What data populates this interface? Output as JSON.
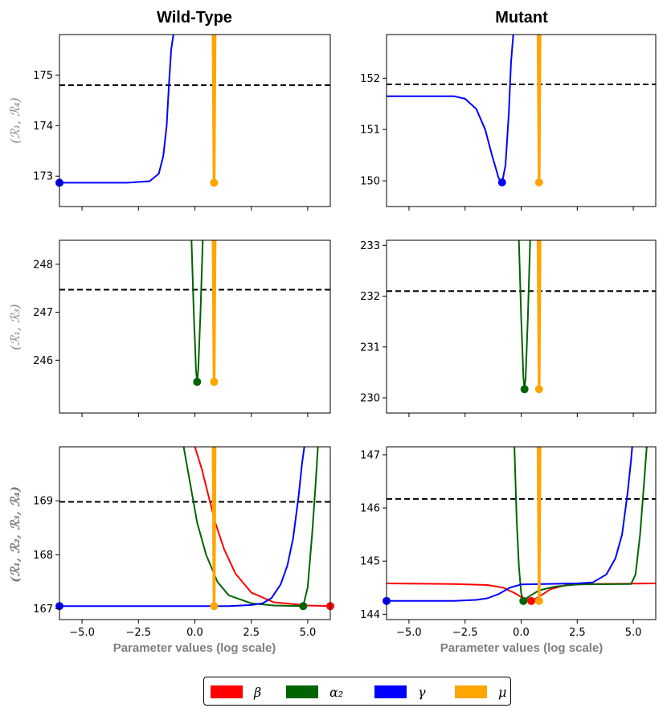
{
  "figure": {
    "column_titles": [
      "Wild-Type",
      "Mutant"
    ],
    "xlabel": "Parameter values (log scale)",
    "row_labels": [
      "(ℛ₁, ℛ₄)",
      "(ℛ₁, ℛ₃)",
      "(ℛ₁, ℛ₂, ℛ₃, ℛ₄)"
    ]
  },
  "legend": [
    {
      "name": "β",
      "color": "#ff0000"
    },
    {
      "name": "α₂",
      "color": "#006400"
    },
    {
      "name": "γ",
      "color": "#0000ff"
    },
    {
      "name": "μ",
      "color": "#ffa500"
    }
  ],
  "colors": {
    "beta": "#ff0000",
    "alpha2": "#006400",
    "gamma": "#0000ff",
    "mu": "#ffa500",
    "threshold": "#000000"
  },
  "chart_data": [
    {
      "type": "line",
      "panel": "Wild-Type row 1",
      "ylabel": "(ℛ₁, ℛ₄)",
      "xlim": [
        -6.0,
        6.0
      ],
      "ylim": [
        172.4,
        175.8
      ],
      "xticks": [
        -5.0,
        -2.5,
        0.0,
        2.5,
        5.0
      ],
      "show_xticklabels": false,
      "yticks": [
        173,
        174,
        175
      ],
      "threshold": 174.8,
      "series": [
        {
          "name": "γ",
          "color": "#0000ff",
          "min_x": -6.0,
          "min_y": 172.87,
          "points": [
            [
              -6.0,
              172.87
            ],
            [
              -3.0,
              172.87
            ],
            [
              -2.0,
              172.9
            ],
            [
              -1.6,
              173.05
            ],
            [
              -1.4,
              173.4
            ],
            [
              -1.25,
              174.0
            ],
            [
              -1.15,
              174.8
            ],
            [
              -1.05,
              175.5
            ],
            [
              -0.95,
              175.8
            ]
          ]
        },
        {
          "name": "μ",
          "color": "#ffa500",
          "min_x": 0.85,
          "min_y": 172.87,
          "points": [
            [
              0.8,
              175.8
            ],
            [
              0.84,
              173.0
            ],
            [
              0.85,
              172.87
            ],
            [
              0.86,
              173.0
            ],
            [
              0.9,
              175.8
            ]
          ]
        }
      ]
    },
    {
      "type": "line",
      "panel": "Mutant row 1",
      "ylabel": "(ℛ₁, ℛ₄)",
      "xlim": [
        -6.0,
        6.0
      ],
      "ylim": [
        149.5,
        152.85
      ],
      "xticks": [
        -5.0,
        -2.5,
        0.0,
        2.5,
        5.0
      ],
      "show_xticklabels": false,
      "yticks": [
        150,
        151,
        152
      ],
      "threshold": 151.88,
      "series": [
        {
          "name": "γ",
          "color": "#0000ff",
          "min_x": -0.85,
          "min_y": 149.97,
          "points": [
            [
              -6.0,
              151.65
            ],
            [
              -3.0,
              151.65
            ],
            [
              -2.5,
              151.6
            ],
            [
              -2.0,
              151.4
            ],
            [
              -1.6,
              151.0
            ],
            [
              -1.3,
              150.5
            ],
            [
              -1.0,
              150.05
            ],
            [
              -0.85,
              149.97
            ],
            [
              -0.7,
              150.3
            ],
            [
              -0.55,
              151.3
            ],
            [
              -0.45,
              152.3
            ],
            [
              -0.35,
              152.85
            ]
          ]
        },
        {
          "name": "μ",
          "color": "#ffa500",
          "min_x": 0.8,
          "min_y": 149.97,
          "points": [
            [
              0.75,
              152.85
            ],
            [
              0.79,
              150.1
            ],
            [
              0.8,
              149.97
            ],
            [
              0.81,
              150.1
            ],
            [
              0.85,
              152.85
            ]
          ]
        }
      ]
    },
    {
      "type": "line",
      "panel": "Wild-Type row 2",
      "ylabel": "(ℛ₁, ℛ₃)",
      "xlim": [
        -6.0,
        6.0
      ],
      "ylim": [
        244.9,
        248.5
      ],
      "xticks": [
        -5.0,
        -2.5,
        0.0,
        2.5,
        5.0
      ],
      "show_xticklabels": false,
      "yticks": [
        246,
        247,
        248
      ],
      "threshold": 247.47,
      "series": [
        {
          "name": "α₂",
          "color": "#006400",
          "min_x": 0.1,
          "min_y": 245.55,
          "points": [
            [
              -0.15,
              248.5
            ],
            [
              -0.05,
              247.0
            ],
            [
              0.05,
              245.8
            ],
            [
              0.1,
              245.55
            ],
            [
              0.15,
              245.8
            ],
            [
              0.25,
              247.0
            ],
            [
              0.35,
              248.5
            ]
          ]
        },
        {
          "name": "μ",
          "color": "#ffa500",
          "min_x": 0.85,
          "min_y": 245.55,
          "points": [
            [
              0.8,
              248.5
            ],
            [
              0.84,
              245.7
            ],
            [
              0.85,
              245.55
            ],
            [
              0.86,
              245.7
            ],
            [
              0.9,
              248.5
            ]
          ]
        }
      ]
    },
    {
      "type": "line",
      "panel": "Mutant row 2",
      "ylabel": "(ℛ₁, ℛ₃)",
      "xlim": [
        -6.0,
        6.0
      ],
      "ylim": [
        229.7,
        233.1
      ],
      "xticks": [
        -5.0,
        -2.5,
        0.0,
        2.5,
        5.0
      ],
      "show_xticklabels": false,
      "yticks": [
        230,
        231,
        232,
        233
      ],
      "threshold": 232.1,
      "series": [
        {
          "name": "α₂",
          "color": "#006400",
          "min_x": 0.15,
          "min_y": 230.17,
          "points": [
            [
              -0.1,
              233.1
            ],
            [
              0.0,
              231.6
            ],
            [
              0.1,
              230.4
            ],
            [
              0.15,
              230.17
            ],
            [
              0.2,
              230.4
            ],
            [
              0.3,
              231.6
            ],
            [
              0.4,
              233.1
            ]
          ]
        },
        {
          "name": "μ",
          "color": "#ffa500",
          "min_x": 0.8,
          "min_y": 230.17,
          "points": [
            [
              0.75,
              233.1
            ],
            [
              0.79,
              230.3
            ],
            [
              0.8,
              230.17
            ],
            [
              0.81,
              230.3
            ],
            [
              0.85,
              233.1
            ]
          ]
        }
      ]
    },
    {
      "type": "line",
      "panel": "Wild-Type row 3",
      "ylabel": "(ℛ₁, ℛ₂, ℛ₃, ℛ₄)",
      "xlim": [
        -6.0,
        6.0
      ],
      "ylim": [
        166.8,
        170.0
      ],
      "xticks": [
        -5.0,
        -2.5,
        0.0,
        2.5,
        5.0
      ],
      "xticklabels": [
        "−5.0",
        "−2.5",
        "0.0",
        "2.5",
        "5.0"
      ],
      "show_xticklabels": true,
      "yticks": [
        167,
        168,
        169
      ],
      "threshold": 168.98,
      "series": [
        {
          "name": "β",
          "color": "#ff0000",
          "min_x": 6.0,
          "min_y": 167.05,
          "points": [
            [
              0.0,
              170.0
            ],
            [
              0.3,
              169.6
            ],
            [
              0.6,
              169.1
            ],
            [
              0.9,
              168.6
            ],
            [
              1.3,
              168.1
            ],
            [
              1.8,
              167.65
            ],
            [
              2.5,
              167.3
            ],
            [
              3.5,
              167.12
            ],
            [
              5.0,
              167.06
            ],
            [
              6.0,
              167.05
            ]
          ]
        },
        {
          "name": "α₂",
          "color": "#006400",
          "min_x": 4.8,
          "min_y": 167.05,
          "points": [
            [
              -0.5,
              170.0
            ],
            [
              -0.2,
              169.3
            ],
            [
              0.1,
              168.6
            ],
            [
              0.5,
              168.0
            ],
            [
              1.0,
              167.5
            ],
            [
              1.5,
              167.25
            ],
            [
              2.5,
              167.1
            ],
            [
              3.5,
              167.06
            ],
            [
              4.8,
              167.05
            ],
            [
              5.0,
              167.4
            ],
            [
              5.2,
              168.4
            ],
            [
              5.35,
              169.3
            ],
            [
              5.45,
              170.0
            ]
          ]
        },
        {
          "name": "γ",
          "color": "#0000ff",
          "min_x": -6.0,
          "min_y": 167.05,
          "points": [
            [
              -6.0,
              167.05
            ],
            [
              1.5,
              167.05
            ],
            [
              2.5,
              167.07
            ],
            [
              3.0,
              167.1
            ],
            [
              3.4,
              167.2
            ],
            [
              3.8,
              167.45
            ],
            [
              4.1,
              167.8
            ],
            [
              4.35,
              168.3
            ],
            [
              4.6,
              169.1
            ],
            [
              4.75,
              169.7
            ],
            [
              4.85,
              170.0
            ]
          ]
        },
        {
          "name": "μ",
          "color": "#ffa500",
          "min_x": 0.85,
          "min_y": 167.05,
          "points": [
            [
              0.8,
              170.0
            ],
            [
              0.84,
              167.2
            ],
            [
              0.85,
              167.05
            ],
            [
              0.86,
              167.2
            ],
            [
              0.9,
              170.0
            ]
          ]
        }
      ]
    },
    {
      "type": "line",
      "panel": "Mutant row 3",
      "ylabel": "(ℛ₁, ℛ₂, ℛ₃, ℛ₄)",
      "xlim": [
        -6.0,
        6.0
      ],
      "ylim": [
        143.9,
        147.15
      ],
      "xticks": [
        -5.0,
        -2.5,
        0.0,
        2.5,
        5.0
      ],
      "xticklabels": [
        "−5.0",
        "−2.5",
        "0.0",
        "2.5",
        "5.0"
      ],
      "show_xticklabels": true,
      "yticks": [
        144,
        145,
        146,
        147
      ],
      "threshold": 146.17,
      "series": [
        {
          "name": "β",
          "color": "#ff0000",
          "min_x": 0.45,
          "min_y": 144.25,
          "points": [
            [
              -6.0,
              144.58
            ],
            [
              -3.0,
              144.57
            ],
            [
              -1.5,
              144.55
            ],
            [
              -0.8,
              144.5
            ],
            [
              -0.3,
              144.4
            ],
            [
              0.1,
              144.3
            ],
            [
              0.45,
              144.25
            ],
            [
              0.8,
              144.33
            ],
            [
              1.3,
              144.47
            ],
            [
              2.0,
              144.55
            ],
            [
              3.0,
              144.57
            ],
            [
              6.0,
              144.58
            ]
          ]
        },
        {
          "name": "α₂",
          "color": "#006400",
          "min_x": 0.1,
          "min_y": 144.25,
          "points": [
            [
              -0.3,
              147.15
            ],
            [
              -0.2,
              145.8
            ],
            [
              -0.1,
              144.9
            ],
            [
              0.0,
              144.4
            ],
            [
              0.1,
              144.25
            ],
            [
              0.3,
              144.32
            ],
            [
              0.8,
              144.45
            ],
            [
              1.5,
              144.52
            ],
            [
              2.5,
              144.56
            ],
            [
              4.9,
              144.57
            ],
            [
              5.1,
              144.75
            ],
            [
              5.3,
              145.5
            ],
            [
              5.45,
              146.3
            ],
            [
              5.6,
              147.15
            ]
          ]
        },
        {
          "name": "γ",
          "color": "#0000ff",
          "min_x": -6.0,
          "min_y": 144.25,
          "points": [
            [
              -6.0,
              144.25
            ],
            [
              -3.0,
              144.25
            ],
            [
              -2.0,
              144.27
            ],
            [
              -1.5,
              144.3
            ],
            [
              -1.0,
              144.38
            ],
            [
              -0.5,
              144.5
            ],
            [
              0.0,
              144.56
            ],
            [
              1.0,
              144.57
            ],
            [
              2.5,
              144.58
            ],
            [
              3.2,
              144.6
            ],
            [
              3.8,
              144.75
            ],
            [
              4.2,
              145.05
            ],
            [
              4.5,
              145.5
            ],
            [
              4.75,
              146.3
            ],
            [
              4.9,
              146.9
            ],
            [
              4.95,
              147.15
            ]
          ]
        },
        {
          "name": "μ",
          "color": "#ffa500",
          "min_x": 0.8,
          "min_y": 144.25,
          "points": [
            [
              0.75,
              147.15
            ],
            [
              0.79,
              144.4
            ],
            [
              0.8,
              144.25
            ],
            [
              0.81,
              144.4
            ],
            [
              0.85,
              147.15
            ]
          ]
        }
      ]
    }
  ]
}
